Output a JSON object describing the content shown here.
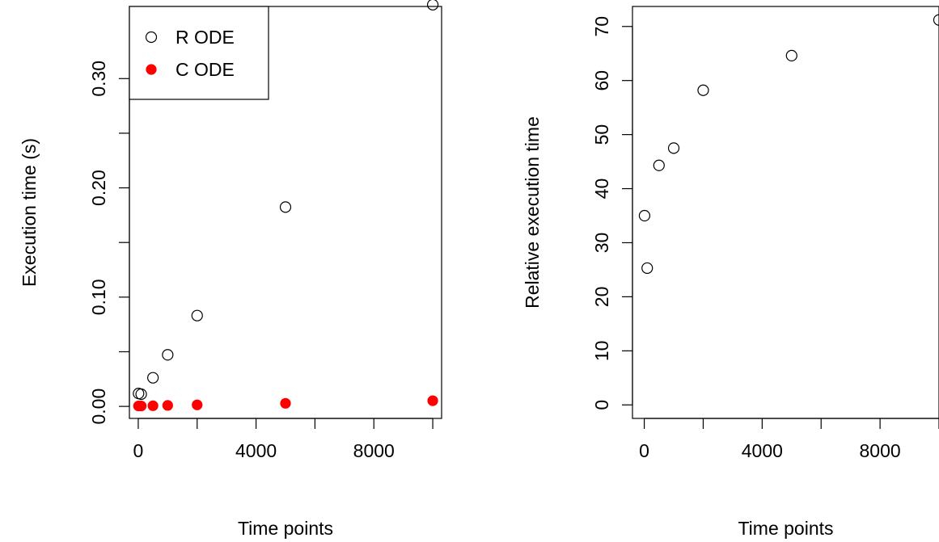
{
  "chart_data": [
    {
      "type": "scatter",
      "title": "",
      "xlabel": "Time points",
      "ylabel": "Execution time (s)",
      "xlim": [
        -300,
        10300
      ],
      "ylim": [
        -0.011,
        0.366
      ],
      "xticks": [
        0,
        2000,
        4000,
        6000,
        8000,
        10000
      ],
      "xtick_labels": [
        "0",
        "",
        "4000",
        "",
        "8000",
        ""
      ],
      "yticks": [
        0.0,
        0.05,
        0.1,
        0.15,
        0.2,
        0.25,
        0.3
      ],
      "ytick_labels": [
        "0.00",
        "",
        "0.10",
        "",
        "0.20",
        "",
        "0.30"
      ],
      "legend": {
        "position": "top-left",
        "entries": [
          {
            "label": "R ODE",
            "marker": "open-circle",
            "color": "#000000"
          },
          {
            "label": "C ODE",
            "marker": "filled-circle",
            "color": "#ff0000"
          }
        ]
      },
      "series": [
        {
          "name": "R ODE",
          "marker": "open-circle",
          "color": "#000000",
          "x": [
            10,
            100,
            500,
            1000,
            2000,
            5000,
            10000
          ],
          "y": [
            0.0118,
            0.0112,
            0.0262,
            0.0472,
            0.0831,
            0.1824,
            0.3676
          ]
        },
        {
          "name": "C ODE",
          "marker": "filled-circle",
          "color": "#ff0000",
          "x": [
            10,
            100,
            500,
            1000,
            2000,
            5000,
            10000
          ],
          "y": [
            0.0004,
            0.0004,
            0.0006,
            0.0009,
            0.0014,
            0.0028,
            0.0052
          ]
        }
      ]
    },
    {
      "type": "scatter",
      "title": "",
      "xlabel": "Time points",
      "ylabel": "Relative execution time",
      "xlim": [
        -400,
        10000
      ],
      "ylim": [
        -2.5,
        73.7
      ],
      "xticks": [
        0,
        2000,
        4000,
        6000,
        8000,
        10000
      ],
      "xtick_labels": [
        "0",
        "",
        "4000",
        "",
        "8000",
        ""
      ],
      "yticks": [
        0,
        10,
        20,
        30,
        40,
        50,
        60,
        70
      ],
      "ytick_labels": [
        "0",
        "10",
        "20",
        "30",
        "40",
        "50",
        "60",
        "70"
      ],
      "series": [
        {
          "name": "",
          "marker": "open-circle",
          "color": "#000000",
          "x": [
            10,
            100,
            500,
            1000,
            2000,
            5000,
            10000
          ],
          "y": [
            35.0,
            25.3,
            44.3,
            47.5,
            58.2,
            64.6,
            71.2
          ]
        }
      ]
    }
  ]
}
